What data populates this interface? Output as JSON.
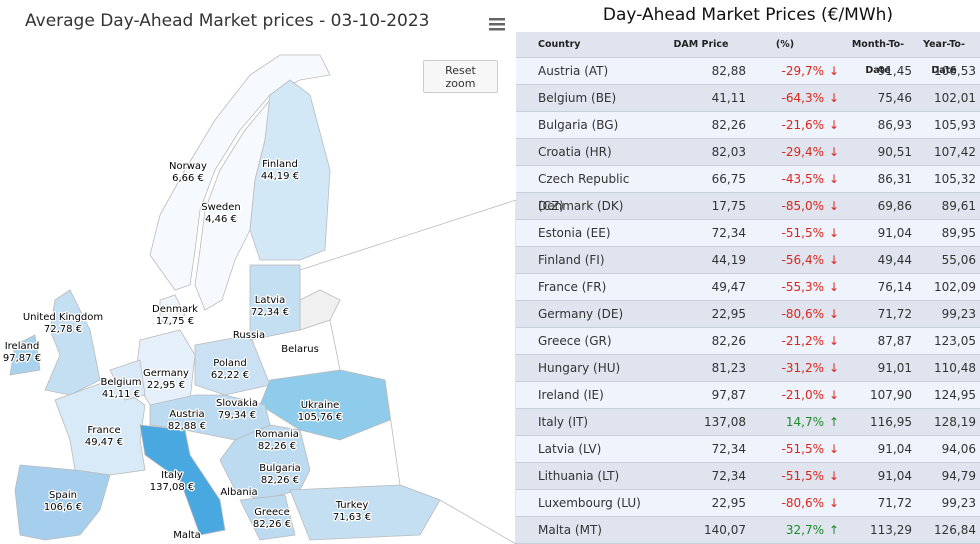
{
  "map": {
    "title": "Average Day-Ahead Market prices - 03-10-2023",
    "reset_zoom": "Reset zoom",
    "regions": [
      {
        "name": "Norway",
        "price": "6,66 €"
      },
      {
        "name": "Finland",
        "price": "44,19 €"
      },
      {
        "name": "Sweden",
        "price": "4,46 €"
      },
      {
        "name": "United Kingdom",
        "price": "72,78 €"
      },
      {
        "name": "Ireland",
        "price": "97,87 €"
      },
      {
        "name": "Denmark",
        "price": "17,75 €"
      },
      {
        "name": "Latvia",
        "price": "72,34 €"
      },
      {
        "name": "Russia"
      },
      {
        "name": "Belarus"
      },
      {
        "name": "Germany",
        "price": "22,95 €"
      },
      {
        "name": "Poland",
        "price": "62,22 €"
      },
      {
        "name": "Belgium",
        "price": "41,11 €"
      },
      {
        "name": "France",
        "price": "49,47 €"
      },
      {
        "name": "Slovakia",
        "price": "79,34 €"
      },
      {
        "name": "Austria",
        "price": "82,88 €"
      },
      {
        "name": "Ukraine",
        "price": "105,76 €"
      },
      {
        "name": "Romania",
        "price": "82,26 €"
      },
      {
        "name": "Italy",
        "price": "137,08 €"
      },
      {
        "name": "Bulgaria",
        "price": "82,26 €"
      },
      {
        "name": "Albania"
      },
      {
        "name": "Spain",
        "price": "106,6 €"
      },
      {
        "name": "Greece",
        "price": "82,26 €"
      },
      {
        "name": "Turkey",
        "price": "71,63 €"
      },
      {
        "name": "Malta"
      }
    ]
  },
  "table": {
    "title": "Day-Ahead Market Prices (€/MWh)",
    "columns": [
      "Country",
      "DAM Price",
      "(%)",
      "Month-To-Date",
      "Year-To-Date"
    ],
    "rows": [
      [
        "Austria (AT)",
        "82,88",
        "-29,7%",
        "91,45",
        "106,53"
      ],
      [
        "Belgium (BE)",
        "41,11",
        "-64,3%",
        "75,46",
        "102,01"
      ],
      [
        "Bulgaria (BG)",
        "82,26",
        "-21,6%",
        "86,93",
        "105,93"
      ],
      [
        "Croatia (HR)",
        "82,03",
        "-29,4%",
        "90,51",
        "107,42"
      ],
      [
        "Czech Republic (CZ)",
        "66,75",
        "-43,5%",
        "86,31",
        "105,32"
      ],
      [
        "Denmark (DK)",
        "17,75",
        "-85,0%",
        "69,86",
        "89,61"
      ],
      [
        "Estonia (EE)",
        "72,34",
        "-51,5%",
        "91,04",
        "89,95"
      ],
      [
        "Finland (FI)",
        "44,19",
        "-56,4%",
        "49,44",
        "55,06"
      ],
      [
        "France (FR)",
        "49,47",
        "-55,3%",
        "76,14",
        "102,09"
      ],
      [
        "Germany (DE)",
        "22,95",
        "-80,6%",
        "71,72",
        "99,23"
      ],
      [
        "Greece (GR)",
        "82,26",
        "-21,2%",
        "87,87",
        "123,05"
      ],
      [
        "Hungary (HU)",
        "81,23",
        "-31,2%",
        "91,01",
        "110,48"
      ],
      [
        "Ireland (IE)",
        "97,87",
        "-21,0%",
        "107,90",
        "124,95"
      ],
      [
        "Italy (IT)",
        "137,08",
        "14,7%",
        "116,95",
        "128,19"
      ],
      [
        "Latvia (LV)",
        "72,34",
        "-51,5%",
        "91,04",
        "94,06"
      ],
      [
        "Lithuania (LT)",
        "72,34",
        "-51,5%",
        "91,04",
        "94,79"
      ],
      [
        "Luxembourg (LU)",
        "22,95",
        "-80,6%",
        "71,72",
        "99,23"
      ],
      [
        "Malta (MT)",
        "140,07",
        "32,7%",
        "113,29",
        "126,84"
      ]
    ]
  }
}
